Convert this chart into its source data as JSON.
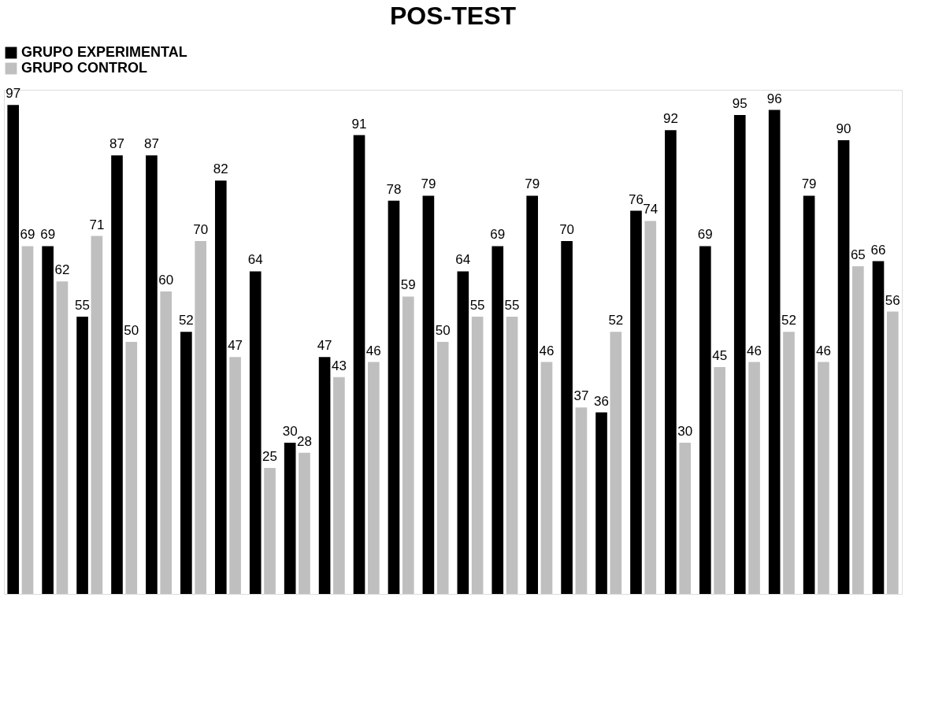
{
  "chart_data": {
    "type": "bar",
    "title": "POS-TEST",
    "categories": [
      null,
      null,
      null,
      null,
      null,
      null,
      null,
      null,
      null,
      null,
      null,
      null,
      null,
      null,
      null,
      null,
      null,
      null,
      null,
      null,
      null,
      null,
      null,
      null,
      null,
      null
    ],
    "series": [
      {
        "name": "GRUPO EXPERIMENTAL",
        "color": "#000000",
        "values": [
          97,
          69,
          55,
          87,
          87,
          52,
          82,
          64,
          30,
          47,
          91,
          78,
          79,
          64,
          69,
          79,
          70,
          36,
          76,
          92,
          69,
          95,
          96,
          79,
          90,
          66
        ]
      },
      {
        "name": "GRUPO CONTROL",
        "color": "#bfbfbf",
        "values": [
          69,
          62,
          71,
          50,
          60,
          70,
          47,
          25,
          28,
          43,
          46,
          59,
          50,
          55,
          55,
          46,
          37,
          52,
          74,
          30,
          45,
          46,
          52,
          46,
          65,
          56
        ]
      }
    ],
    "data_labels": true,
    "legend": "top left",
    "grid": false
  }
}
